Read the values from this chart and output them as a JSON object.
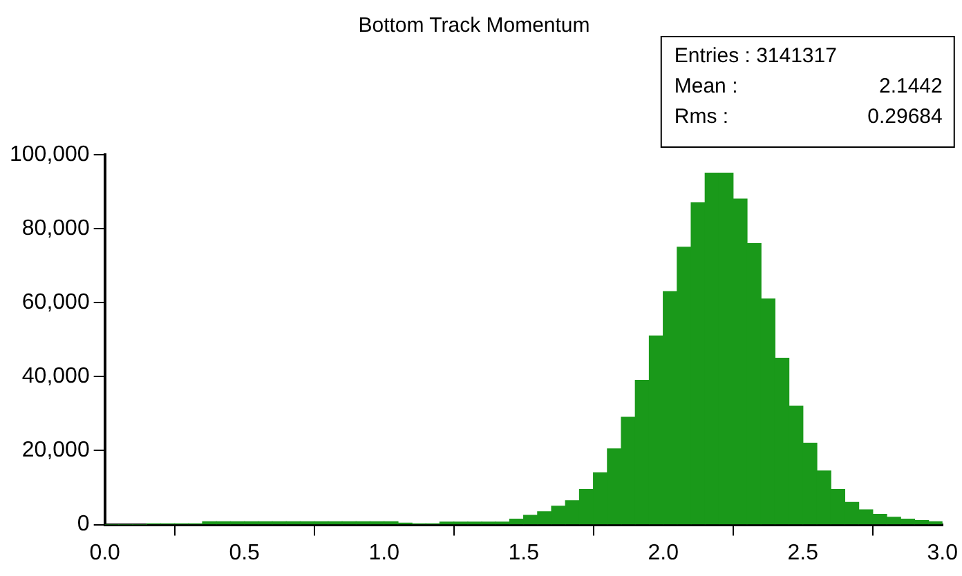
{
  "chart_data": {
    "type": "histogram",
    "title": "Bottom Track Momentum",
    "bins": [
      0,
      0.05,
      0.1,
      0.15,
      0.2,
      0.25,
      0.3,
      0.35,
      0.4,
      0.45,
      0.5,
      0.55,
      0.6,
      0.65,
      0.7,
      0.75,
      0.8,
      0.85,
      0.9,
      0.95,
      1.0,
      1.05,
      1.1,
      1.15,
      1.2,
      1.25,
      1.3,
      1.35,
      1.4,
      1.45,
      1.5,
      1.55,
      1.6,
      1.65,
      1.7,
      1.75,
      1.8,
      1.85,
      1.9,
      1.95,
      2.0,
      2.05,
      2.1,
      2.15,
      2.2,
      2.25,
      2.3,
      2.35,
      2.4,
      2.45,
      2.5,
      2.55,
      2.6,
      2.65,
      2.7,
      2.75,
      2.8,
      2.85,
      2.9,
      2.95,
      3.0
    ],
    "values": [
      0,
      0,
      0,
      200,
      200,
      200,
      200,
      800,
      800,
      800,
      800,
      800,
      800,
      800,
      800,
      800,
      800,
      800,
      800,
      800,
      800,
      400,
      200,
      200,
      700,
      700,
      700,
      700,
      700,
      1500,
      2500,
      3500,
      5000,
      6500,
      9500,
      14000,
      20500,
      29000,
      39000,
      51000,
      63000,
      75000,
      87000,
      95000,
      95000,
      88000,
      76000,
      61000,
      45000,
      32000,
      22000,
      14500,
      9500,
      6000,
      4000,
      2800,
      2000,
      1500,
      1100,
      800
    ],
    "color": "#1a991a",
    "xlim": [
      0,
      3.0
    ],
    "xticks": [
      {
        "value": 0,
        "label": "0.0"
      },
      {
        "value": 0.5,
        "label": "0.5"
      },
      {
        "value": 1,
        "label": "1.0"
      },
      {
        "value": 1.5,
        "label": "1.5"
      },
      {
        "value": 2,
        "label": "2.0"
      },
      {
        "value": 2.5,
        "label": "2.5"
      },
      {
        "value": 3,
        "label": "3.0"
      }
    ],
    "ylim": [
      0,
      100000
    ],
    "yticks": [
      {
        "value": 0,
        "label": "0"
      },
      {
        "value": 20000,
        "label": "20,000"
      },
      {
        "value": 40000,
        "label": "40,000"
      },
      {
        "value": 60000,
        "label": "60,000"
      },
      {
        "value": 80000,
        "label": "80,000"
      },
      {
        "value": 100000,
        "label": "100,000"
      }
    ],
    "grid": false,
    "annotations": [
      "Entries : 3141317",
      "Mean :  2.1442",
      "Rms :  0.29684"
    ]
  }
}
